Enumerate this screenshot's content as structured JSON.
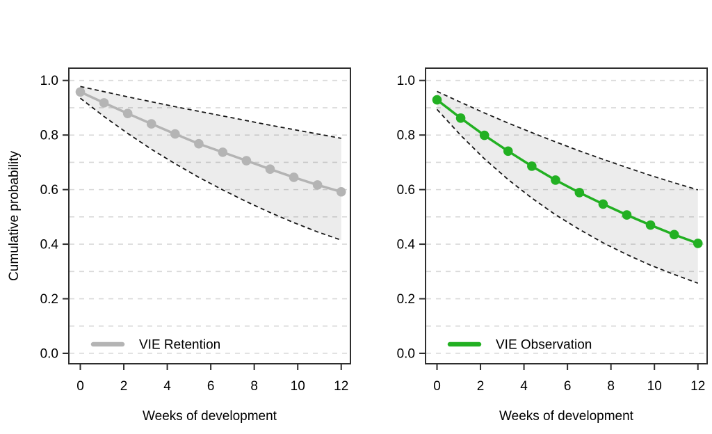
{
  "figure": {
    "background": "#ffffff",
    "ylabel": "Cumulative probability",
    "xlabel": "Weeks of development"
  },
  "chart_data": [
    {
      "type": "line",
      "title": "",
      "xlabel": "Weeks of development",
      "ylabel": "Cumulative probability",
      "xlim": [
        0,
        12
      ],
      "ylim": [
        0.0,
        1.0
      ],
      "grid": "dashed horizontal every 0.1",
      "legend_position": "bottom-left inside plot",
      "x_ticks": [
        "0",
        "2",
        "4",
        "6",
        "8",
        "10",
        "12"
      ],
      "x_tick_values": [
        0,
        2,
        4,
        6,
        8,
        10,
        12
      ],
      "y_ticks": [
        "0.0",
        "0.2",
        "0.4",
        "0.6",
        "0.8",
        "1.0"
      ],
      "y_tick_values": [
        0.0,
        0.2,
        0.4,
        0.6,
        0.8,
        1.0
      ],
      "x": [
        0,
        1.09,
        2.18,
        3.27,
        4.36,
        5.45,
        6.55,
        7.64,
        8.73,
        9.82,
        10.91,
        12
      ],
      "series": [
        {
          "name": "VIE Retention",
          "color": "#b4b4b4",
          "marker": "filled-circle",
          "values": [
            0.958,
            0.918,
            0.879,
            0.841,
            0.804,
            0.768,
            0.737,
            0.706,
            0.675,
            0.645,
            0.617,
            0.592
          ],
          "ci_upper": [
            0.978,
            0.959,
            0.94,
            0.922,
            0.904,
            0.887,
            0.87,
            0.853,
            0.836,
            0.82,
            0.804,
            0.788
          ],
          "ci_lower": [
            0.935,
            0.868,
            0.806,
            0.748,
            0.695,
            0.645,
            0.599,
            0.556,
            0.516,
            0.479,
            0.445,
            0.415
          ]
        }
      ],
      "legend_label": "VIE Retention"
    },
    {
      "type": "line",
      "title": "",
      "xlabel": "Weeks of development",
      "ylabel": "",
      "xlim": [
        0,
        12
      ],
      "ylim": [
        0.0,
        1.0
      ],
      "grid": "dashed horizontal every 0.1",
      "legend_position": "bottom-left inside plot",
      "x_ticks": [
        "0",
        "2",
        "4",
        "6",
        "8",
        "10",
        "12"
      ],
      "x_tick_values": [
        0,
        2,
        4,
        6,
        8,
        10,
        12
      ],
      "y_ticks": [
        "0.0",
        "0.2",
        "0.4",
        "0.6",
        "0.8",
        "1.0"
      ],
      "y_tick_values": [
        0.0,
        0.2,
        0.4,
        0.6,
        0.8,
        1.0
      ],
      "x": [
        0,
        1.09,
        2.18,
        3.27,
        4.36,
        5.45,
        6.55,
        7.64,
        8.73,
        9.82,
        10.91,
        12
      ],
      "series": [
        {
          "name": "VIE Observation",
          "color": "#22b022",
          "marker": "filled-circle",
          "values": [
            0.929,
            0.862,
            0.799,
            0.741,
            0.686,
            0.635,
            0.589,
            0.547,
            0.507,
            0.47,
            0.435,
            0.403
          ],
          "ci_upper": [
            0.96,
            0.92,
            0.881,
            0.844,
            0.809,
            0.775,
            0.742,
            0.711,
            0.681,
            0.652,
            0.625,
            0.599
          ],
          "ci_lower": [
            0.894,
            0.799,
            0.713,
            0.637,
            0.569,
            0.508,
            0.454,
            0.405,
            0.362,
            0.323,
            0.289,
            0.257
          ]
        }
      ],
      "legend_label": "VIE Observation"
    }
  ],
  "style": {
    "ci_fill": "rgba(0,0,0,0.075)",
    "ci_line_color": "#161616",
    "grid_color": "#d9d9d9",
    "box_color": "#2e2e2e",
    "tick_color": "#2e2e2e",
    "text_color": "#000000"
  }
}
